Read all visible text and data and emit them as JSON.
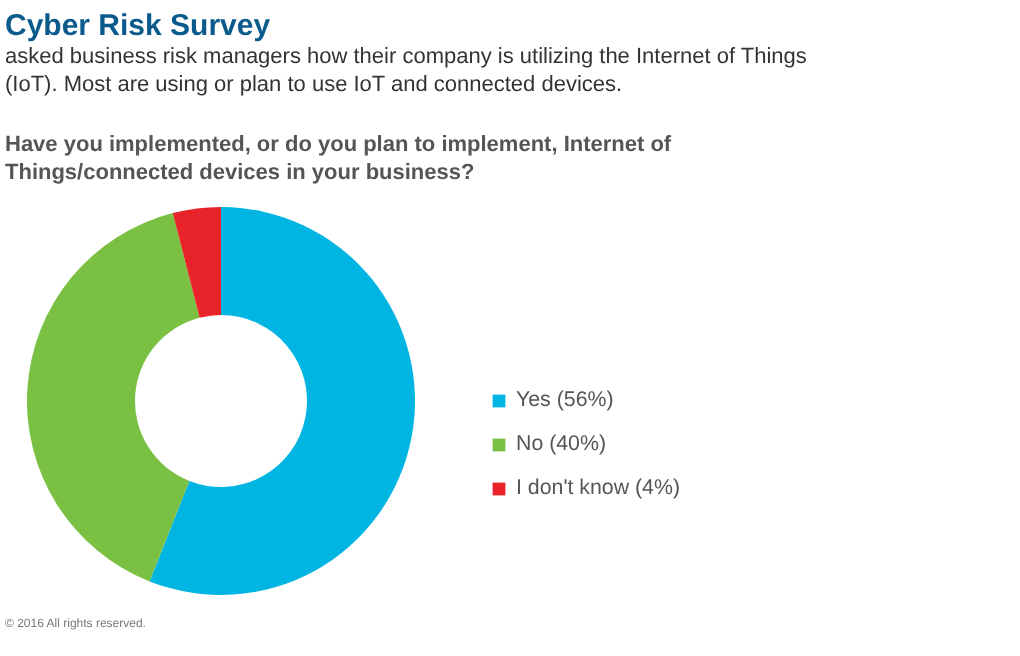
{
  "chart_data": {
    "type": "donut",
    "title": "Cyber Risk Survey",
    "subtitle": "asked business risk managers how their company is utilizing the Internet of Things (IoT). Most are using or plan to use IoT and connected devices.",
    "xlabel": "Have you implemented, or do you plan to implement, Internet of Things/connected devices in your business?",
    "categories": [
      "Yes (56%)",
      "No (40%)",
      "I don't know (4%)"
    ],
    "values": [
      56,
      40,
      4
    ],
    "colors": [
      "#00b5e2",
      "#7ac143",
      "#e8232a"
    ],
    "legend": "right",
    "annotations": [
      "© 2016 All rights reserved."
    ]
  }
}
